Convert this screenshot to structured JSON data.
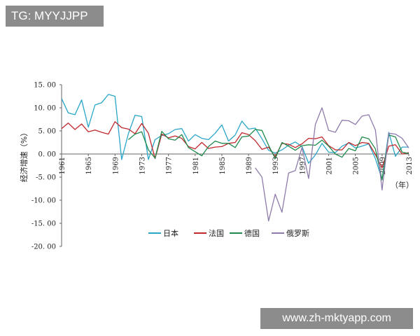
{
  "overlays": {
    "top_tag": "TG: MYYJJPP",
    "bottom_site": "www.zh-mktyapp.com"
  },
  "chart_data": {
    "type": "line",
    "title": "",
    "ylabel": "经济增速（%）",
    "xunit": "（年）",
    "ylim": [
      -20,
      15
    ],
    "yticks": [
      "15. 00",
      "10. 00",
      "5. 00",
      "0. 00",
      "-5. 00",
      "-10. 00",
      "-15. 00",
      "-20. 00"
    ],
    "xticks": [
      1961,
      1965,
      1969,
      1973,
      1977,
      1981,
      1985,
      1989,
      1993,
      1997,
      2001,
      2005,
      2009,
      2013
    ],
    "xlim": [
      1961,
      2013
    ],
    "grid": false,
    "legend_position": "bottom",
    "series": [
      {
        "name": "日本",
        "color": "#2aa6c8",
        "x": [
          1961,
          1962,
          1963,
          1964,
          1965,
          1966,
          1967,
          1968,
          1969,
          1970,
          1971,
          1972,
          1973,
          1974,
          1975,
          1976,
          1977,
          1978,
          1979,
          1980,
          1981,
          1982,
          1983,
          1984,
          1985,
          1986,
          1987,
          1988,
          1989,
          1990,
          1991,
          1992,
          1993,
          1994,
          1995,
          1996,
          1997,
          1998,
          1999,
          2000,
          2001,
          2002,
          2003,
          2004,
          2005,
          2006,
          2007,
          2008,
          2009,
          2010,
          2011,
          2012,
          2013
        ],
        "values": [
          12,
          8.9,
          8.5,
          11.7,
          5.8,
          10.6,
          11.1,
          12.9,
          12.5,
          -1.2,
          4.4,
          8.4,
          8.1,
          -1.2,
          3.1,
          4,
          4.4,
          5.3,
          5.5,
          2.8,
          4.2,
          3.4,
          3.1,
          4.5,
          6.3,
          2.8,
          4.1,
          7.1,
          5.4,
          5.6,
          3.3,
          0.8,
          0.2,
          0.9,
          1.9,
          2.6,
          1.6,
          -2,
          -0.2,
          2.3,
          0.4,
          0.3,
          1.7,
          2.4,
          1.3,
          1.7,
          2.2,
          -1,
          -5.5,
          4.7,
          -0.5,
          1.5,
          1.5
        ]
      },
      {
        "name": "法国",
        "color": "#c0282d",
        "x": [
          1961,
          1962,
          1963,
          1964,
          1965,
          1966,
          1967,
          1968,
          1969,
          1970,
          1971,
          1972,
          1973,
          1974,
          1975,
          1976,
          1977,
          1978,
          1979,
          1980,
          1981,
          1982,
          1983,
          1984,
          1985,
          1986,
          1987,
          1988,
          1989,
          1990,
          1991,
          1992,
          1993,
          1994,
          1995,
          1996,
          1997,
          1998,
          1999,
          2000,
          2001,
          2002,
          2003,
          2004,
          2005,
          2006,
          2007,
          2008,
          2009,
          2010,
          2011,
          2012,
          2013
        ],
        "values": [
          5.5,
          6.7,
          5.3,
          6.5,
          4.8,
          5.2,
          4.7,
          4.3,
          7,
          5.7,
          5.4,
          4.4,
          6.6,
          4.5,
          -1,
          4.3,
          3.5,
          3.9,
          3.4,
          1.6,
          1.1,
          2.5,
          1.2,
          1.5,
          1.6,
          2.3,
          2.5,
          4.6,
          4.2,
          2.9,
          1,
          1.5,
          -0.6,
          2.3,
          2.1,
          1.4,
          2.2,
          3.4,
          3.3,
          3.7,
          1.8,
          0.9,
          0.9,
          2.5,
          1.8,
          2.5,
          2.3,
          -0.1,
          -3,
          1.7,
          2,
          0,
          0.3
        ]
      },
      {
        "name": "德国",
        "color": "#1f8a4c",
        "x": [
          1971,
          1972,
          1973,
          1974,
          1975,
          1976,
          1977,
          1978,
          1979,
          1980,
          1981,
          1982,
          1983,
          1984,
          1985,
          1986,
          1987,
          1988,
          1989,
          1990,
          1991,
          1992,
          1993,
          1994,
          1995,
          1996,
          1997,
          1998,
          1999,
          2000,
          2001,
          2002,
          2003,
          2004,
          2005,
          2006,
          2007,
          2008,
          2009,
          2010,
          2011,
          2012,
          2013
        ],
        "values": [
          3.1,
          4.3,
          4.8,
          0.9,
          -0.9,
          4.9,
          3.3,
          3,
          4.2,
          1.4,
          0.5,
          -0.4,
          1.6,
          2.8,
          2.3,
          2.3,
          1.4,
          3.7,
          3.9,
          5.3,
          5.1,
          1.9,
          -1,
          2.5,
          1.7,
          0.8,
          1.8,
          2,
          1.9,
          3,
          1.7,
          0,
          -0.7,
          1.2,
          0.7,
          3.7,
          3.3,
          1.1,
          -5.6,
          4.1,
          3.7,
          0.4,
          0.1
        ]
      },
      {
        "name": "俄罗斯",
        "color": "#8e7bab",
        "x": [
          1990,
          1991,
          1992,
          1993,
          1994,
          1995,
          1996,
          1997,
          1998,
          1999,
          2000,
          2001,
          2002,
          2003,
          2004,
          2005,
          2006,
          2007,
          2008,
          2009,
          2010,
          2011,
          2012,
          2013
        ],
        "values": [
          -3,
          -5,
          -14.5,
          -8.7,
          -12.6,
          -4.1,
          -3.6,
          1.4,
          -5.3,
          6.4,
          10,
          5.1,
          4.7,
          7.3,
          7.2,
          6.4,
          8.2,
          8.5,
          5.2,
          -7.8,
          4.5,
          4.3,
          3.4,
          1.3
        ]
      }
    ]
  }
}
